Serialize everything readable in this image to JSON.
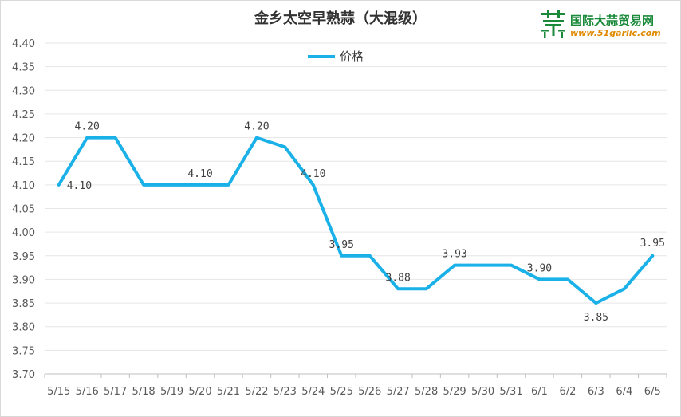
{
  "chart_data": {
    "type": "line",
    "title": "金乡太空早熟蒜（大混级）",
    "xlabel": "",
    "ylabel": "",
    "categories": [
      "5/15",
      "5/16",
      "5/17",
      "5/18",
      "5/19",
      "5/20",
      "5/21",
      "5/22",
      "5/23",
      "5/24",
      "5/25",
      "5/26",
      "5/27",
      "5/28",
      "5/29",
      "5/30",
      "5/31",
      "6/1",
      "6/2",
      "6/3",
      "6/4",
      "6/5"
    ],
    "series": [
      {
        "name": "价格",
        "color": "#1ab0e8",
        "values": [
          4.1,
          4.2,
          4.2,
          4.1,
          4.1,
          4.1,
          4.1,
          4.2,
          4.18,
          4.1,
          3.95,
          3.95,
          3.88,
          3.88,
          3.93,
          3.93,
          3.93,
          3.9,
          3.9,
          3.85,
          3.88,
          3.95
        ]
      }
    ],
    "data_labels": [
      {
        "index": 0,
        "text": "4.10"
      },
      {
        "index": 1,
        "text": "4.20"
      },
      {
        "index": 5,
        "text": "4.10"
      },
      {
        "index": 7,
        "text": "4.20"
      },
      {
        "index": 9,
        "text": "4.10"
      },
      {
        "index": 10,
        "text": "3.95"
      },
      {
        "index": 12,
        "text": "3.88"
      },
      {
        "index": 14,
        "text": "3.93"
      },
      {
        "index": 17,
        "text": "3.90"
      },
      {
        "index": 19,
        "text": "3.85"
      },
      {
        "index": 21,
        "text": "3.95"
      }
    ],
    "ylim": [
      3.7,
      4.4
    ],
    "yticks": [
      "3.70",
      "3.75",
      "3.80",
      "3.85",
      "3.90",
      "3.95",
      "4.00",
      "4.05",
      "4.10",
      "4.15",
      "4.20",
      "4.25",
      "4.30",
      "4.35",
      "4.40"
    ],
    "grid": true,
    "legend_position": "top-center"
  },
  "logo": {
    "name": "国际大蒜贸易网",
    "url": "www.51garlic.com",
    "icon": "garlic-logo-icon"
  }
}
